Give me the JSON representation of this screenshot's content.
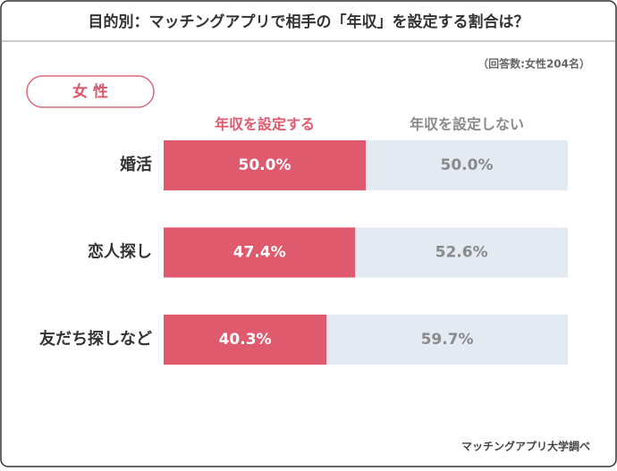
{
  "chart_data": {
    "type": "stacked-bar-horizontal",
    "title": "目的別：マッチングアプリで相手の「年収」を設定する割合は？",
    "note": "（回答数:女性204名）",
    "panel_label": "女 性",
    "source": "マッチングアプリ大学調べ",
    "categories": [
      "婚活",
      "恋人探し",
      "友だち探しなど"
    ],
    "xlim": [
      0,
      100
    ],
    "series": [
      {
        "name": "年収を設定する",
        "color": "#e05a6e",
        "label_color": "#ffffff",
        "values": [
          50.0,
          47.4,
          40.3
        ],
        "value_labels": [
          "50.0%",
          "47.4%",
          "40.3%"
        ]
      },
      {
        "name": "年収を設定しない",
        "color": "#e3eaf1",
        "label_color": "#8a8a8a",
        "values": [
          50.0,
          52.6,
          59.7
        ],
        "value_labels": [
          "50.0%",
          "52.6%",
          "59.7%"
        ]
      }
    ]
  }
}
